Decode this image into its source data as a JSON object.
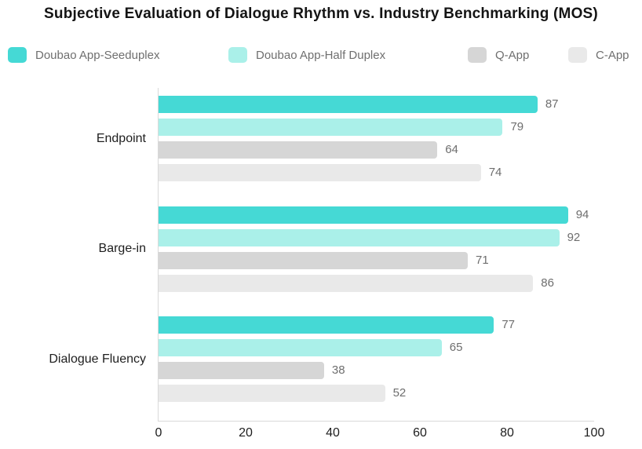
{
  "chart_data": {
    "type": "bar",
    "orientation": "horizontal",
    "title": "Subjective Evaluation of Dialogue Rhythm vs. Industry Benchmarking (MOS)",
    "categories": [
      "Endpoint",
      "Barge-in",
      "Dialogue Fluency"
    ],
    "series": [
      {
        "name": "Doubao App-Seeduplex",
        "color": "#45d9d5",
        "values": [
          87,
          94,
          77
        ]
      },
      {
        "name": "Doubao App-Half Duplex",
        "color": "#aaf0e9",
        "values": [
          79,
          92,
          65
        ]
      },
      {
        "name": "Q-App",
        "color": "#d6d6d6",
        "values": [
          64,
          71,
          38
        ]
      },
      {
        "name": "C-App",
        "color": "#e9e9e9",
        "values": [
          74,
          86,
          52
        ]
      }
    ],
    "xlabel": "",
    "ylabel": "",
    "xlim": [
      0,
      100
    ],
    "x_ticks": [
      0,
      20,
      40,
      60,
      80,
      100
    ],
    "value_labels": true,
    "grid": false,
    "legend_position": "top",
    "colors": {
      "axis_line": "#d9d9d9",
      "title_text": "#141414",
      "category_text": "#1e1e1e",
      "value_label_text": "#6e6e6e",
      "legend_text": "#6f6f6f"
    }
  }
}
